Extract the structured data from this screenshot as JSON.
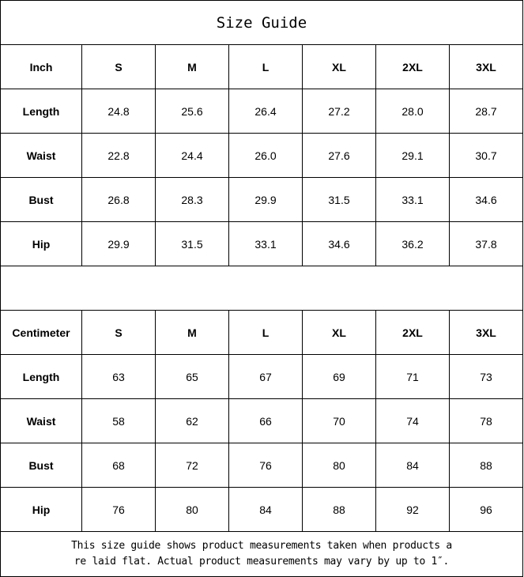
{
  "title": "Size Guide",
  "inch": {
    "header": [
      "Inch",
      "S",
      "M",
      "L",
      "XL",
      "2XL",
      "3XL"
    ],
    "rows": [
      [
        "Length",
        "24.8",
        "25.6",
        "26.4",
        "27.2",
        "28.0",
        "28.7"
      ],
      [
        "Waist",
        "22.8",
        "24.4",
        "26.0",
        "27.6",
        "29.1",
        "30.7"
      ],
      [
        "Bust",
        "26.8",
        "28.3",
        "29.9",
        "31.5",
        "33.1",
        "34.6"
      ],
      [
        "Hip",
        "29.9",
        "31.5",
        "33.1",
        "34.6",
        "36.2",
        "37.8"
      ]
    ]
  },
  "cm": {
    "header": [
      "Centimeter",
      "S",
      "M",
      "L",
      "XL",
      "2XL",
      "3XL"
    ],
    "rows": [
      [
        "Length",
        "63",
        "65",
        "67",
        "69",
        "71",
        "73"
      ],
      [
        "Waist",
        "58",
        "62",
        "66",
        "70",
        "74",
        "78"
      ],
      [
        "Bust",
        "68",
        "72",
        "76",
        "80",
        "84",
        "88"
      ],
      [
        "Hip",
        "76",
        "80",
        "84",
        "88",
        "92",
        "96"
      ]
    ]
  },
  "note": {
    "line1": "This size guide shows product measurements taken when products a",
    "line2": "re laid flat. Actual product measurements may vary by up to 1″."
  }
}
